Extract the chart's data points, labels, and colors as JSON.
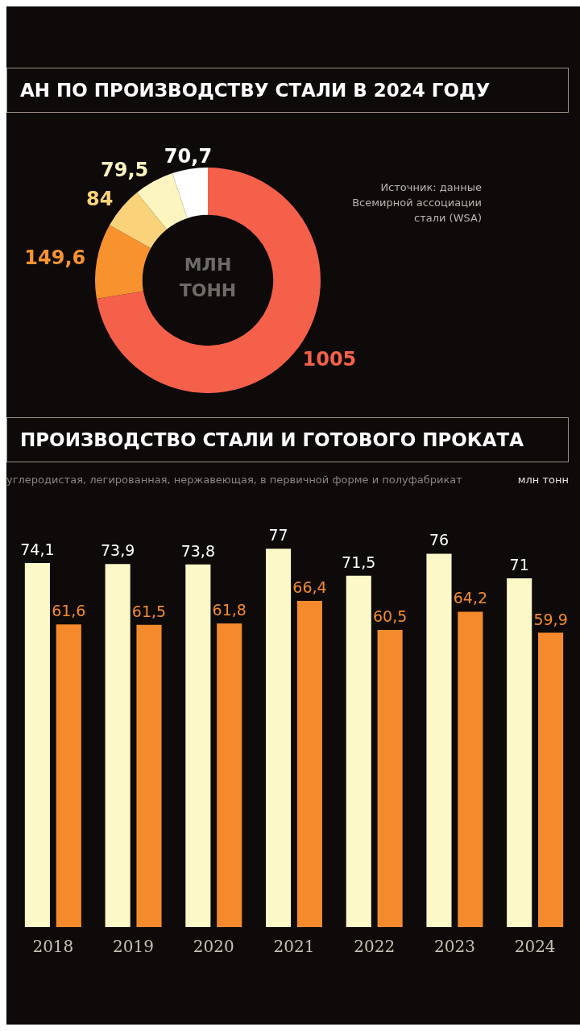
{
  "chart_data": [
    {
      "type": "donut",
      "title": "АН ПО ПРОИЗВОДСТВУ СТАЛИ В 2024 ГОДУ",
      "categories": [
        null,
        null,
        null,
        null,
        null
      ],
      "values": [
        1005,
        149.6,
        84,
        79.5,
        70.7
      ],
      "value_labels": [
        "1005",
        "149,6",
        "84",
        "79,5",
        "70,7"
      ],
      "colors": [
        "#f4604a",
        "#f7922f",
        "#f9d27a",
        "#fdf5c0",
        "#ffffff"
      ],
      "annotations": [
        "МЛН ТОНН",
        "Источник: данные Всемирной ассоциации стали (WSA)"
      ],
      "legend": false
    },
    {
      "type": "bar",
      "title": "ПРОИЗВОДСТВО СТАЛИ И ГОТОВОГО ПРОКАТА",
      "subtitle": "углеродистая, легированная, нержавеющая, в первичной форме и полуфабрикат",
      "ylabel": "млн тонн",
      "categories": [
        "2018",
        "2019",
        "2020",
        "2021",
        "2022",
        "2023",
        "2024"
      ],
      "relative": false,
      "legend": false,
      "grid": false,
      "series": [
        {
          "color": "#fdf8c8",
          "values": [
            74.1,
            73.9,
            73.8,
            77,
            71.5,
            76,
            71
          ],
          "value_labels": [
            "74,1",
            "73,9",
            "73,8",
            "77",
            "71,5",
            "76",
            "71"
          ]
        },
        {
          "color": "#f58a2d",
          "values": [
            61.6,
            61.5,
            61.8,
            66.4,
            60.5,
            64.2,
            59.9
          ],
          "value_labels": [
            "61,6",
            "61,5",
            "61,8",
            "66,4",
            "60,5",
            "64,2",
            "59,9"
          ]
        }
      ]
    }
  ]
}
